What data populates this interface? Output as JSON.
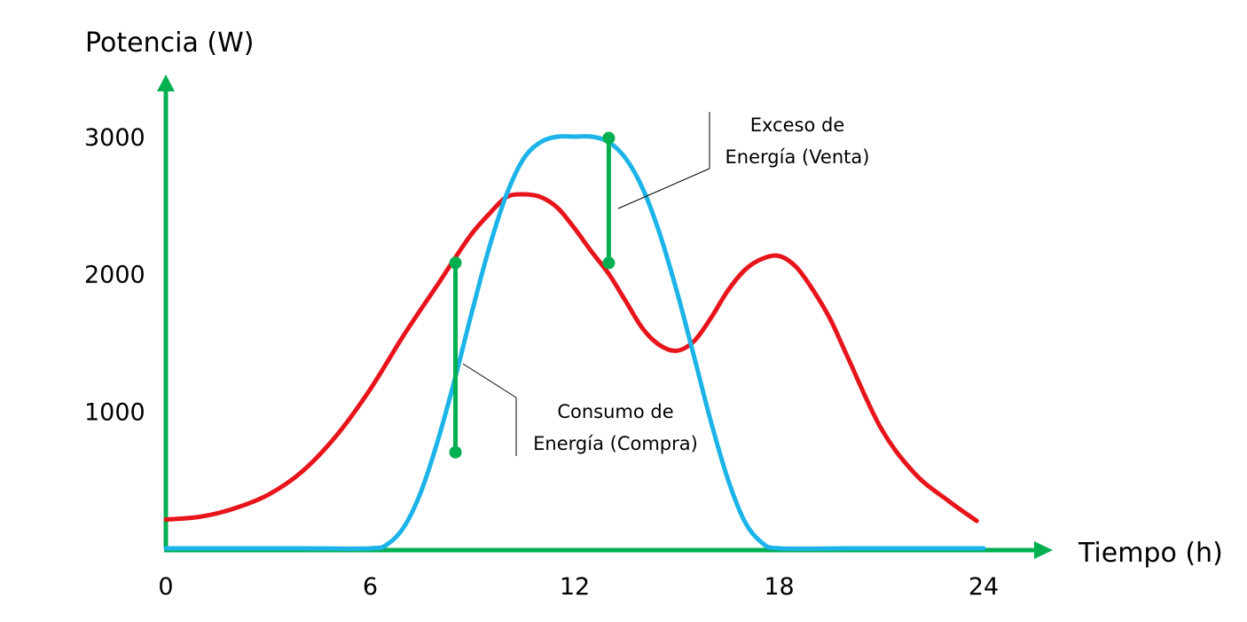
{
  "chart_data": {
    "type": "line",
    "title": "",
    "ylabel": "Potencia (W)",
    "xlabel": "Tiempo (h)",
    "xlim": [
      0,
      24
    ],
    "ylim": [
      0,
      3000
    ],
    "x_ticks": [
      "0",
      "6",
      "12",
      "18",
      "24"
    ],
    "y_ticks": [
      "1000",
      "2000",
      "3000"
    ],
    "grid": false,
    "colors": {
      "axes": "#00b050",
      "consumption": "#e8141b",
      "generation": "#1cb4e8",
      "markers": "#00b050"
    },
    "series": [
      {
        "x": [
          0,
          1,
          2,
          3,
          4,
          5,
          6,
          7,
          8,
          8.5,
          9,
          9.5,
          10,
          10.5,
          11,
          11.5,
          12,
          12.5,
          13,
          13.5,
          14,
          14.5,
          15,
          15.5,
          16,
          16.5,
          17,
          17.5,
          18,
          18.5,
          19,
          19.5,
          20,
          21,
          22,
          23,
          23.8
        ],
        "y": [
          210,
          230,
          290,
          390,
          560,
          820,
          1160,
          1560,
          1930,
          2120,
          2300,
          2440,
          2560,
          2580,
          2560,
          2480,
          2330,
          2160,
          2000,
          1800,
          1600,
          1480,
          1440,
          1510,
          1680,
          1880,
          2030,
          2110,
          2130,
          2050,
          1880,
          1670,
          1400,
          870,
          540,
          340,
          200
        ]
      },
      {
        "x": [
          0,
          2,
          4,
          6,
          6.5,
          7,
          7.5,
          8,
          8.5,
          9,
          9.5,
          10,
          10.5,
          11,
          11.5,
          12,
          12.5,
          13,
          13.5,
          14,
          14.5,
          15,
          15.5,
          16,
          16.5,
          17,
          17.5,
          18,
          20,
          22,
          24
        ],
        "y": [
          0,
          0,
          0,
          0,
          30,
          160,
          420,
          800,
          1250,
          1740,
          2200,
          2580,
          2840,
          2960,
          3000,
          3000,
          3000,
          2960,
          2840,
          2620,
          2290,
          1870,
          1400,
          920,
          500,
          190,
          40,
          0,
          0,
          0,
          0
        ]
      }
    ],
    "annotations": [
      {
        "lines": [
          "Exceso de",
          "Energía (Venta)"
        ],
        "x": 13,
        "y_from": 2080,
        "y_to": 2990
      },
      {
        "lines": [
          "Consumo de",
          "Energía (Compra)"
        ],
        "x": 8.5,
        "y_from": 700,
        "y_to": 2080
      }
    ]
  }
}
